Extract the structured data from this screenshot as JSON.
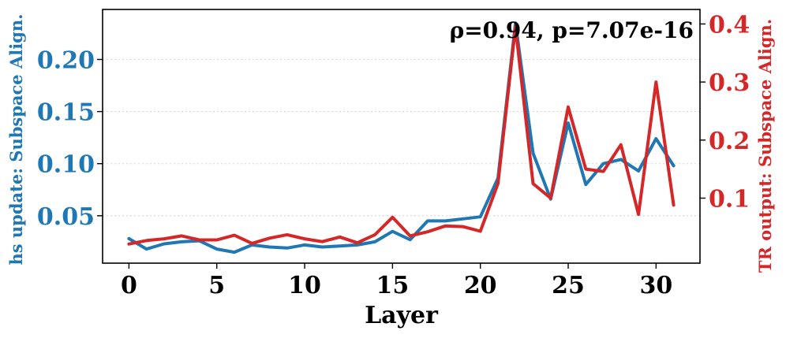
{
  "chart_data": {
    "type": "line",
    "annotation": "ρ=0.94, p=7.07e-16",
    "xlabel": "Layer",
    "ylabel_left": "hs update: Subspace Align.",
    "ylabel_right": "TR output: Subspace Align.",
    "xlim": [
      -1.5,
      32.5
    ],
    "ylim_left": [
      0.0045,
      0.248
    ],
    "ylim_right": [
      -0.012,
      0.425
    ],
    "x_ticks": [
      0,
      5,
      10,
      15,
      20,
      25,
      30
    ],
    "x_tick_labels": [
      "0",
      "5",
      "10",
      "15",
      "20",
      "25",
      "30"
    ],
    "y_left_ticks": [
      0.05,
      0.1,
      0.15,
      0.2
    ],
    "y_left_tick_labels": [
      "0.05",
      "0.10",
      "0.15",
      "0.20"
    ],
    "y_right_ticks": [
      0.1,
      0.2,
      0.3,
      0.4
    ],
    "y_right_tick_labels": [
      "0.1",
      "0.2",
      "0.3",
      "0.4"
    ],
    "grid": "horizontal dotted",
    "colors": {
      "left": "#1f77b4",
      "right": "#d62728"
    },
    "x": [
      0,
      1,
      2,
      3,
      4,
      5,
      6,
      7,
      8,
      9,
      10,
      11,
      12,
      13,
      14,
      15,
      16,
      17,
      18,
      19,
      20,
      21,
      22,
      23,
      24,
      25,
      26,
      27,
      28,
      29,
      30,
      31
    ],
    "series": [
      {
        "axis": "left",
        "color": "#1f77b4",
        "values": [
          0.028,
          0.018,
          0.023,
          0.025,
          0.026,
          0.018,
          0.015,
          0.022,
          0.02,
          0.019,
          0.022,
          0.02,
          0.021,
          0.022,
          0.025,
          0.035,
          0.027,
          0.045,
          0.045,
          0.047,
          0.049,
          0.086,
          0.235,
          0.11,
          0.066,
          0.139,
          0.08,
          0.1,
          0.104,
          0.093,
          0.124,
          0.098
        ]
      },
      {
        "axis": "right",
        "color": "#d62728",
        "values": [
          0.021,
          0.027,
          0.03,
          0.035,
          0.028,
          0.028,
          0.036,
          0.022,
          0.031,
          0.037,
          0.03,
          0.025,
          0.033,
          0.023,
          0.037,
          0.067,
          0.035,
          0.042,
          0.052,
          0.051,
          0.043,
          0.125,
          0.395,
          0.125,
          0.1,
          0.257,
          0.15,
          0.146,
          0.192,
          0.072,
          0.3,
          0.088
        ]
      }
    ]
  }
}
